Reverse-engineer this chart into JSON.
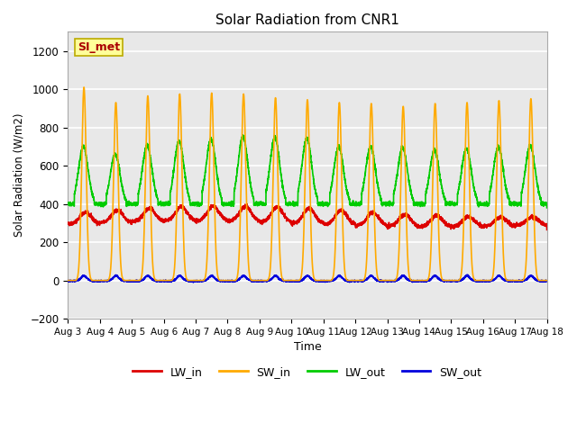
{
  "title": "Solar Radiation from CNR1",
  "xlabel": "Time",
  "ylabel": "Solar Radiation (W/m2)",
  "ylim": [
    -200,
    1300
  ],
  "yticks": [
    -200,
    0,
    200,
    400,
    600,
    800,
    1000,
    1200
  ],
  "xlim": [
    0,
    15
  ],
  "xtick_labels": [
    "Aug 3",
    "Aug 4",
    "Aug 5",
    "Aug 6",
    "Aug 7",
    "Aug 8",
    "Aug 9",
    "Aug 10",
    "Aug 11",
    "Aug 12",
    "Aug 13",
    "Aug 14",
    "Aug 15",
    "Aug 16",
    "Aug 17",
    "Aug 18"
  ],
  "colors": {
    "LW_in": "#dd0000",
    "SW_in": "#ffaa00",
    "LW_out": "#00cc00",
    "SW_out": "#0000dd"
  },
  "fig_bg": "#ffffff",
  "plot_bg": "#e8e8e8",
  "grid_color": "#ffffff",
  "annotation_text": "SI_met",
  "annotation_bg": "#ffff99",
  "annotation_border": "#bbaa00",
  "annotation_text_color": "#aa0000"
}
